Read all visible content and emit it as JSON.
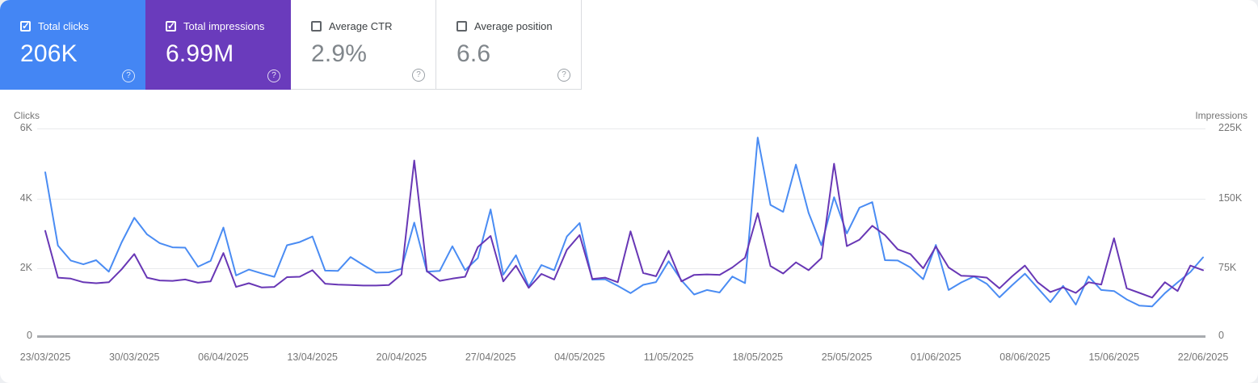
{
  "cards": [
    {
      "label": "Total clicks",
      "value": "206K",
      "checked": true,
      "bg": "#4486f4",
      "help_icon": "?"
    },
    {
      "label": "Total impressions",
      "value": "6.99M",
      "checked": true,
      "bg": "#6a3bbc",
      "help_icon": "?"
    },
    {
      "label": "Average CTR",
      "value": "2.9%",
      "checked": false,
      "bg": "#ffffff",
      "help_icon": "?"
    },
    {
      "label": "Average position",
      "value": "6.6",
      "checked": false,
      "bg": "#ffffff",
      "help_icon": "?"
    }
  ],
  "chart_data": {
    "type": "line",
    "x_unit": "day",
    "date_range": {
      "start": "23/03/2025",
      "end": "22/06/2025"
    },
    "x_tick_labels": [
      "23/03/2025",
      "30/03/2025",
      "06/04/2025",
      "13/04/2025",
      "20/04/2025",
      "27/04/2025",
      "04/05/2025",
      "11/05/2025",
      "18/05/2025",
      "25/05/2025",
      "01/06/2025",
      "08/06/2025",
      "15/06/2025",
      "22/06/2025"
    ],
    "left_axis": {
      "title": "Clicks",
      "ticks": [
        "6K",
        "4K",
        "2K",
        "0"
      ],
      "min": 0,
      "max": 6000
    },
    "right_axis": {
      "title": "Impressions",
      "ticks": [
        "225K",
        "150K",
        "75K",
        "0"
      ],
      "min": 0,
      "max": 225000
    },
    "grid": "horizontal-only",
    "legend_position": "none",
    "series": [
      {
        "name": "Total clicks",
        "axis": "left",
        "color": "#4a8cf3",
        "data_name": "clicks-line",
        "values": [
          4740,
          2630,
          2200,
          2090,
          2210,
          1880,
          2720,
          3430,
          2950,
          2700,
          2580,
          2570,
          2020,
          2190,
          3150,
          1770,
          1940,
          1830,
          1730,
          2640,
          2730,
          2890,
          1910,
          1900,
          2300,
          2070,
          1850,
          1860,
          1960,
          3290,
          1880,
          1900,
          2610,
          1920,
          2270,
          3670,
          1790,
          2350,
          1450,
          2070,
          1920,
          2890,
          3280,
          1650,
          1660,
          1470,
          1260,
          1500,
          1580,
          2180,
          1630,
          1220,
          1350,
          1280,
          1740,
          1550,
          5740,
          3800,
          3600,
          4960,
          3570,
          2640,
          4020,
          2980,
          3720,
          3880,
          2210,
          2200,
          2000,
          1660,
          2650,
          1350,
          1570,
          1740,
          1530,
          1140,
          1490,
          1820,
          1410,
          1000,
          1470,
          930,
          1740,
          1350,
          1320,
          1080,
          900,
          880,
          1260,
          1570,
          1870,
          2290
        ]
      },
      {
        "name": "Total impressions",
        "axis": "right",
        "color": "#6837b5",
        "data_name": "impressions-line",
        "values": [
          114500,
          64000,
          63000,
          59000,
          58000,
          59000,
          73000,
          89500,
          64000,
          61000,
          60500,
          62000,
          58500,
          60000,
          90500,
          54000,
          58000,
          53500,
          54000,
          64500,
          65000,
          72000,
          57500,
          56500,
          56000,
          55500,
          55500,
          56000,
          67500,
          190500,
          71000,
          60500,
          63000,
          65000,
          97000,
          109000,
          60000,
          77000,
          53000,
          68000,
          62000,
          94000,
          110000,
          62500,
          64000,
          59000,
          114000,
          69000,
          65500,
          93000,
          60000,
          67000,
          67500,
          67000,
          75000,
          85500,
          133500,
          76500,
          68500,
          80500,
          72000,
          85000,
          187000,
          98000,
          105000,
          120000,
          110000,
          94500,
          89500,
          74000,
          97500,
          75000,
          66000,
          65500,
          64000,
          52500,
          65500,
          77000,
          59000,
          48500,
          53500,
          47500,
          59000,
          56500,
          106500,
          52500,
          47500,
          42500,
          59000,
          49500,
          77000,
          72000
        ]
      }
    ]
  }
}
